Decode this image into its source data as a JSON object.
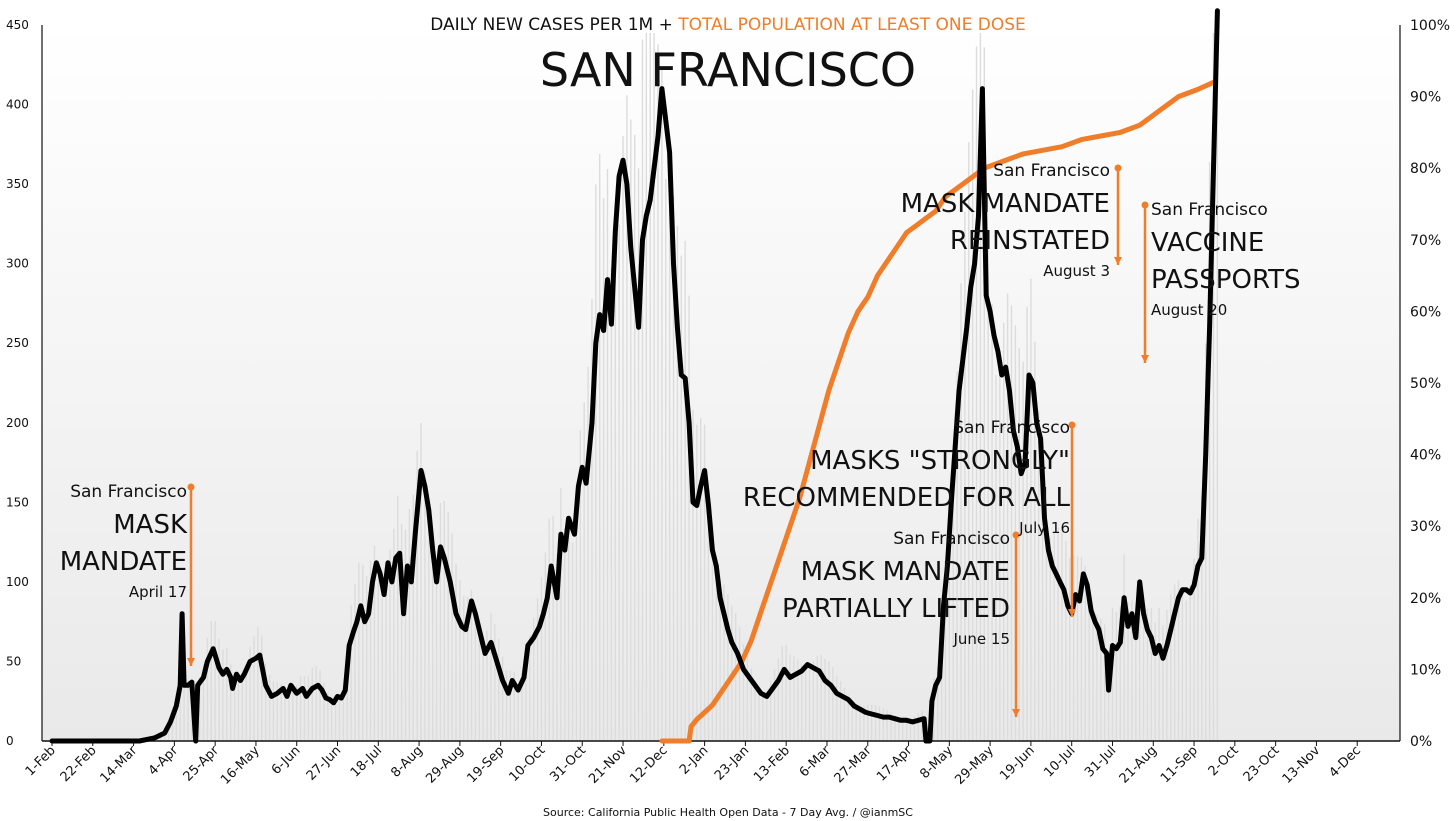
{
  "colors": {
    "cases": "#000000",
    "vaccine": "#f07d2a",
    "bars": "#dcdcdc",
    "frame": "#111111"
  },
  "chart_data": {
    "type": "line",
    "title": "SAN FRANCISCO",
    "subtitle_main": "DAILY NEW CASES PER 1M + ",
    "subtitle_accent": "TOTAL POPULATION AT LEAST ONE DOSE",
    "source": "Source: California Public Health Open Data - 7 Day Avg. / @ianmSC",
    "left_axis": {
      "ylim": [
        0,
        450
      ],
      "ticks": [
        "0",
        "50",
        "100",
        "150",
        "200",
        "250",
        "300",
        "350",
        "400",
        "450"
      ]
    },
    "right_axis": {
      "ylim": [
        0,
        100
      ],
      "ticks": [
        "0%",
        "10%",
        "20%",
        "30%",
        "40%",
        "50%",
        "60%",
        "70%",
        "80%",
        "90%",
        "100%"
      ]
    },
    "x_ticks": [
      "1-Feb",
      "22-Feb",
      "14-Mar",
      "4-Apr",
      "25-Apr",
      "16-May",
      "6-Jun",
      "27-Jun",
      "18-Jul",
      "8-Aug",
      "29-Aug",
      "19-Sep",
      "10-Oct",
      "31-Oct",
      "21-Nov",
      "12-Dec",
      "2-Jan",
      "23-Jan",
      "13-Feb",
      "6-Mar",
      "27-Mar",
      "17-Apr",
      "8-May",
      "29-May",
      "19-Jun",
      "10-Jul",
      "31-Jul",
      "21-Aug",
      "11-Sep",
      "2-Oct",
      "23-Oct",
      "13-Nov",
      "4-Dec"
    ],
    "x_range_days": [
      0,
      693
    ],
    "series": [
      {
        "name": "Daily new cases per 1M (7-day avg)",
        "axis": "left",
        "points": [
          [
            0,
            0
          ],
          [
            30,
            0
          ],
          [
            45,
            0
          ],
          [
            53,
            2
          ],
          [
            58,
            5
          ],
          [
            61,
            12
          ],
          [
            64,
            22
          ],
          [
            66,
            35
          ],
          [
            67,
            80
          ],
          [
            68,
            35
          ],
          [
            70,
            35
          ],
          [
            72,
            37
          ],
          [
            74,
            0
          ],
          [
            75,
            35
          ],
          [
            78,
            40
          ],
          [
            80,
            50
          ],
          [
            83,
            58
          ],
          [
            86,
            46
          ],
          [
            88,
            42
          ],
          [
            90,
            45
          ],
          [
            92,
            40
          ],
          [
            93,
            33
          ],
          [
            95,
            42
          ],
          [
            97,
            38
          ],
          [
            99,
            42
          ],
          [
            102,
            50
          ],
          [
            105,
            52
          ],
          [
            107,
            54
          ],
          [
            110,
            35
          ],
          [
            113,
            28
          ],
          [
            116,
            30
          ],
          [
            119,
            33
          ],
          [
            121,
            28
          ],
          [
            123,
            35
          ],
          [
            126,
            30
          ],
          [
            129,
            33
          ],
          [
            131,
            28
          ],
          [
            134,
            33
          ],
          [
            137,
            35
          ],
          [
            139,
            32
          ],
          [
            141,
            27
          ],
          [
            143,
            26
          ],
          [
            145,
            24
          ],
          [
            147,
            28
          ],
          [
            149,
            27
          ],
          [
            151,
            32
          ],
          [
            153,
            60
          ],
          [
            155,
            68
          ],
          [
            157,
            75
          ],
          [
            159,
            85
          ],
          [
            161,
            75
          ],
          [
            163,
            80
          ],
          [
            165,
            100
          ],
          [
            167,
            112
          ],
          [
            169,
            105
          ],
          [
            171,
            92
          ],
          [
            173,
            112
          ],
          [
            175,
            100
          ],
          [
            177,
            115
          ],
          [
            179,
            118
          ],
          [
            181,
            80
          ],
          [
            183,
            110
          ],
          [
            185,
            100
          ],
          [
            187,
            130
          ],
          [
            190,
            170
          ],
          [
            192,
            160
          ],
          [
            194,
            145
          ],
          [
            196,
            120
          ],
          [
            198,
            100
          ],
          [
            200,
            122
          ],
          [
            202,
            115
          ],
          [
            205,
            100
          ],
          [
            208,
            80
          ],
          [
            211,
            72
          ],
          [
            213,
            70
          ],
          [
            216,
            88
          ],
          [
            218,
            80
          ],
          [
            221,
            65
          ],
          [
            223,
            55
          ],
          [
            226,
            62
          ],
          [
            229,
            50
          ],
          [
            232,
            38
          ],
          [
            235,
            30
          ],
          [
            237,
            38
          ],
          [
            240,
            32
          ],
          [
            243,
            40
          ],
          [
            245,
            60
          ],
          [
            248,
            65
          ],
          [
            251,
            72
          ],
          [
            253,
            80
          ],
          [
            255,
            90
          ],
          [
            257,
            110
          ],
          [
            260,
            90
          ],
          [
            262,
            130
          ],
          [
            264,
            120
          ],
          [
            266,
            140
          ],
          [
            269,
            130
          ],
          [
            271,
            160
          ],
          [
            273,
            172
          ],
          [
            275,
            162
          ],
          [
            278,
            200
          ],
          [
            280,
            250
          ],
          [
            282,
            268
          ],
          [
            284,
            258
          ],
          [
            286,
            290
          ],
          [
            288,
            262
          ],
          [
            290,
            320
          ],
          [
            292,
            355
          ],
          [
            294,
            365
          ],
          [
            296,
            350
          ],
          [
            298,
            310
          ],
          [
            300,
            285
          ],
          [
            302,
            260
          ],
          [
            304,
            315
          ],
          [
            306,
            330
          ],
          [
            308,
            340
          ],
          [
            310,
            360
          ],
          [
            312,
            380
          ],
          [
            314,
            410
          ],
          [
            316,
            390
          ],
          [
            318,
            370
          ],
          [
            320,
            300
          ],
          [
            322,
            260
          ],
          [
            324,
            230
          ],
          [
            326,
            228
          ],
          [
            328,
            200
          ],
          [
            330,
            150
          ],
          [
            332,
            148
          ],
          [
            334,
            160
          ],
          [
            336,
            170
          ],
          [
            338,
            148
          ],
          [
            340,
            120
          ],
          [
            342,
            110
          ],
          [
            344,
            90
          ],
          [
            346,
            80
          ],
          [
            348,
            70
          ],
          [
            350,
            62
          ],
          [
            353,
            55
          ],
          [
            356,
            45
          ],
          [
            359,
            40
          ],
          [
            362,
            35
          ],
          [
            365,
            30
          ],
          [
            368,
            28
          ],
          [
            371,
            33
          ],
          [
            374,
            38
          ],
          [
            377,
            45
          ],
          [
            380,
            40
          ],
          [
            383,
            42
          ],
          [
            386,
            44
          ],
          [
            389,
            48
          ],
          [
            392,
            46
          ],
          [
            395,
            44
          ],
          [
            398,
            38
          ],
          [
            401,
            35
          ],
          [
            404,
            30
          ],
          [
            407,
            28
          ],
          [
            410,
            26
          ],
          [
            413,
            22
          ],
          [
            416,
            20
          ],
          [
            419,
            18
          ],
          [
            422,
            17
          ],
          [
            425,
            16
          ],
          [
            428,
            15
          ],
          [
            431,
            15
          ],
          [
            434,
            14
          ],
          [
            437,
            13
          ],
          [
            440,
            13
          ],
          [
            443,
            12
          ],
          [
            446,
            13
          ],
          [
            449,
            14
          ],
          [
            450,
            0
          ],
          [
            452,
            0
          ],
          [
            453,
            25
          ],
          [
            455,
            35
          ],
          [
            457,
            40
          ],
          [
            459,
            85
          ],
          [
            461,
            110
          ],
          [
            463,
            150
          ],
          [
            465,
            185
          ],
          [
            467,
            220
          ],
          [
            469,
            240
          ],
          [
            471,
            260
          ],
          [
            473,
            285
          ],
          [
            475,
            300
          ],
          [
            477,
            330
          ],
          [
            479,
            410
          ],
          [
            481,
            280
          ],
          [
            483,
            270
          ],
          [
            485,
            255
          ],
          [
            487,
            245
          ],
          [
            489,
            230
          ],
          [
            491,
            235
          ],
          [
            493,
            220
          ],
          [
            495,
            195
          ],
          [
            497,
            185
          ],
          [
            499,
            168
          ],
          [
            501,
            175
          ],
          [
            503,
            230
          ],
          [
            505,
            225
          ],
          [
            507,
            200
          ],
          [
            509,
            190
          ],
          [
            511,
            140
          ],
          [
            513,
            120
          ],
          [
            515,
            110
          ],
          [
            517,
            105
          ],
          [
            519,
            100
          ],
          [
            521,
            95
          ],
          [
            523,
            85
          ],
          [
            525,
            80
          ],
          [
            527,
            92
          ],
          [
            529,
            88
          ],
          [
            531,
            105
          ],
          [
            533,
            98
          ],
          [
            535,
            82
          ],
          [
            537,
            75
          ],
          [
            539,
            70
          ],
          [
            541,
            58
          ],
          [
            543,
            55
          ],
          [
            544,
            32
          ],
          [
            546,
            60
          ],
          [
            548,
            58
          ],
          [
            550,
            62
          ],
          [
            552,
            90
          ],
          [
            554,
            72
          ],
          [
            556,
            80
          ],
          [
            558,
            65
          ],
          [
            560,
            100
          ],
          [
            562,
            80
          ],
          [
            564,
            70
          ],
          [
            566,
            65
          ],
          [
            568,
            55
          ],
          [
            570,
            60
          ],
          [
            572,
            52
          ],
          [
            574,
            60
          ],
          [
            576,
            70
          ],
          [
            578,
            80
          ],
          [
            580,
            90
          ],
          [
            582,
            95
          ],
          [
            584,
            95
          ],
          [
            586,
            93
          ],
          [
            588,
            98
          ],
          [
            590,
            110
          ],
          [
            592,
            115
          ],
          [
            594,
            180
          ],
          [
            596,
            260
          ],
          [
            598,
            360
          ],
          [
            600,
            460
          ]
        ]
      },
      {
        "name": "Total population at least one dose (%)",
        "axis": "right",
        "points": [
          [
            314,
            0
          ],
          [
            328,
            0
          ],
          [
            329,
            2
          ],
          [
            332,
            3
          ],
          [
            336,
            4
          ],
          [
            340,
            5
          ],
          [
            345,
            7
          ],
          [
            350,
            9
          ],
          [
            355,
            11
          ],
          [
            360,
            14
          ],
          [
            365,
            18
          ],
          [
            370,
            22
          ],
          [
            375,
            26
          ],
          [
            380,
            30
          ],
          [
            385,
            34
          ],
          [
            390,
            39
          ],
          [
            395,
            44
          ],
          [
            400,
            49
          ],
          [
            405,
            53
          ],
          [
            410,
            57
          ],
          [
            415,
            60
          ],
          [
            420,
            62
          ],
          [
            425,
            65
          ],
          [
            430,
            67
          ],
          [
            435,
            69
          ],
          [
            440,
            71
          ],
          [
            445,
            72
          ],
          [
            450,
            73
          ],
          [
            455,
            74
          ],
          [
            460,
            76
          ],
          [
            465,
            77
          ],
          [
            470,
            78
          ],
          [
            475,
            79
          ],
          [
            480,
            80
          ],
          [
            490,
            81
          ],
          [
            500,
            82
          ],
          [
            510,
            82.5
          ],
          [
            520,
            83
          ],
          [
            530,
            84
          ],
          [
            540,
            84.5
          ],
          [
            550,
            85
          ],
          [
            560,
            86
          ],
          [
            565,
            87
          ],
          [
            570,
            88
          ],
          [
            575,
            89
          ],
          [
            580,
            90
          ],
          [
            590,
            91
          ],
          [
            598,
            92
          ]
        ]
      }
    ],
    "annotations": [
      {
        "place": "San Francisco",
        "lines": [
          "MASK",
          "MANDATE"
        ],
        "date": "April 17"
      },
      {
        "place": "San Francisco",
        "lines": [
          "MASK MANDATE",
          "PARTIALLY LIFTED"
        ],
        "date": "June 15"
      },
      {
        "place": "San Francisco",
        "lines": [
          "MASKS \"STRONGLY\"",
          "RECOMMENDED FOR ALL"
        ],
        "date": "July 16"
      },
      {
        "place": "San Francisco",
        "lines": [
          "MASK MANDATE",
          "REINSTATED"
        ],
        "date": "August 3"
      },
      {
        "place": "San Francisco",
        "lines": [
          "VACCINE",
          "PASSPORTS"
        ],
        "date": "August 20"
      }
    ]
  }
}
